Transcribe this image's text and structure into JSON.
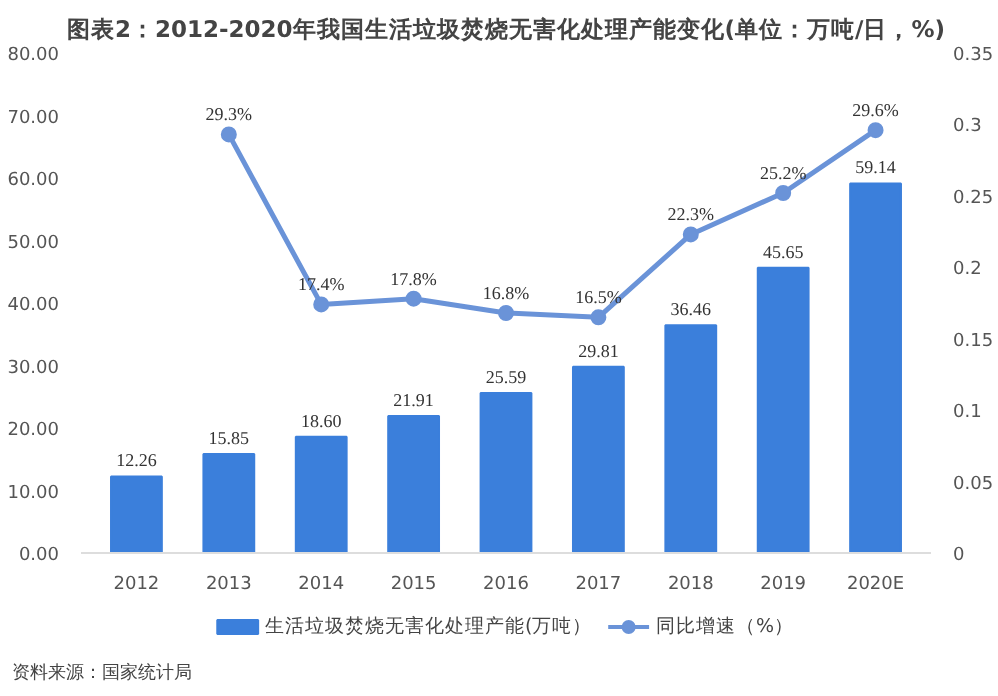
{
  "chart_data": {
    "type": "bar",
    "title": "图表2：2012-2020年我国生活垃圾焚烧无害化处理产能变化(单位：万吨/日，%)",
    "categories": [
      "2012",
      "2013",
      "2014",
      "2015",
      "2016",
      "2017",
      "2018",
      "2019",
      "2020E"
    ],
    "series": [
      {
        "name": "生活垃圾焚烧无害化处理产能(万吨）",
        "color": "#3b7fdb",
        "values": [
          12.26,
          15.85,
          18.6,
          21.91,
          25.59,
          29.81,
          36.46,
          45.65,
          59.14
        ],
        "value_labels": [
          "12.26",
          "15.85",
          "18.60",
          "21.91",
          "25.59",
          "29.81",
          "36.46",
          "45.65",
          "59.14"
        ]
      },
      {
        "name": "同比增速（%）",
        "type": "line",
        "axis": "y2",
        "color": "#6a93d8",
        "marker": "circle",
        "values": [
          null,
          0.293,
          0.174,
          0.178,
          0.168,
          0.165,
          0.223,
          0.252,
          0.296
        ],
        "value_labels": [
          null,
          "29.3%",
          "17.4%",
          "17.8%",
          "16.8%",
          "16.5%",
          "22.3%",
          "25.2%",
          "29.6%"
        ]
      }
    ],
    "ylim": [
      0,
      80
    ],
    "yticks": [
      {
        "value": 0,
        "label": "0.00"
      },
      {
        "value": 10,
        "label": "10.00"
      },
      {
        "value": 20,
        "label": "20.00"
      },
      {
        "value": 30,
        "label": "30.00"
      },
      {
        "value": 40,
        "label": "40.00"
      },
      {
        "value": 50,
        "label": "50.00"
      },
      {
        "value": 60,
        "label": "60.00"
      },
      {
        "value": 70,
        "label": "70.00"
      },
      {
        "value": 80,
        "label": "80.00"
      }
    ],
    "y2lim": [
      0,
      0.35
    ],
    "y2ticks": [
      0,
      0.05,
      0.1,
      0.15,
      0.2,
      0.25,
      0.3,
      0.35
    ],
    "grid": false,
    "legend": "bottom",
    "annotations": [
      "资料来源：国家统计局"
    ]
  }
}
